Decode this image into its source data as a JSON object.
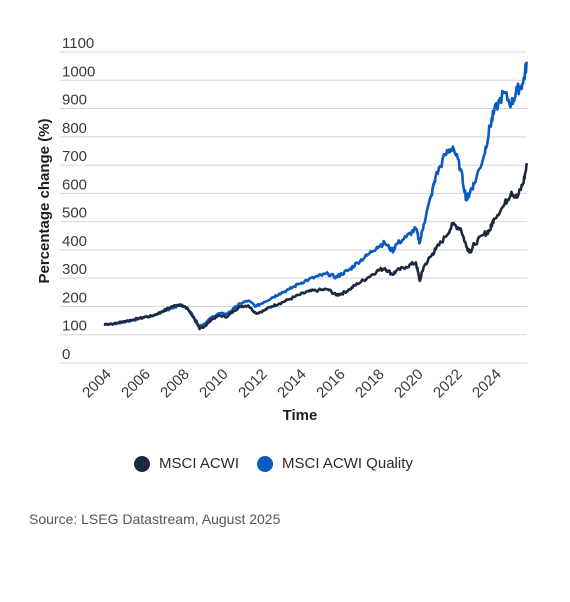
{
  "chart_data": {
    "type": "line",
    "title": "",
    "xlabel": "Time",
    "ylabel": "Percentage change (%)",
    "ylim": [
      0,
      1100
    ],
    "yticks": [
      0,
      100,
      200,
      300,
      400,
      500,
      600,
      700,
      800,
      900,
      1000,
      1100
    ],
    "xlim": [
      2004,
      2025.7
    ],
    "xticks": [
      "2004",
      "2006",
      "2008",
      "2010",
      "2012",
      "2014",
      "2016",
      "2018",
      "2020",
      "2022",
      "2024"
    ],
    "grid": "horizontal",
    "legend_position": "bottom",
    "series": [
      {
        "name": "MSCI ACWI",
        "color": "#1c2a3f",
        "x": [
          2004.0,
          2004.5,
          2005.0,
          2005.5,
          2006.0,
          2006.5,
          2007.0,
          2007.5,
          2007.9,
          2008.3,
          2008.6,
          2008.9,
          2009.2,
          2009.5,
          2009.9,
          2010.3,
          2010.7,
          2011.0,
          2011.4,
          2011.8,
          2012.2,
          2012.6,
          2013.0,
          2013.5,
          2014.0,
          2014.5,
          2015.0,
          2015.5,
          2015.9,
          2016.2,
          2016.6,
          2017.0,
          2017.5,
          2018.0,
          2018.4,
          2018.8,
          2019.0,
          2019.5,
          2020.0,
          2020.2,
          2020.4,
          2020.8,
          2021.0,
          2021.5,
          2021.9,
          2022.3,
          2022.6,
          2022.8,
          2023.0,
          2023.5,
          2023.8,
          2024.0,
          2024.5,
          2024.9,
          2025.2,
          2025.5,
          2025.7
        ],
        "values": [
          102,
          103,
          112,
          118,
          126,
          132,
          148,
          165,
          172,
          155,
          125,
          85,
          96,
          118,
          132,
          128,
          150,
          165,
          168,
          140,
          150,
          165,
          175,
          190,
          205,
          218,
          222,
          225,
          205,
          210,
          225,
          245,
          265,
          290,
          300,
          278,
          290,
          305,
          320,
          255,
          305,
          345,
          365,
          410,
          455,
          440,
          375,
          360,
          385,
          420,
          435,
          475,
          520,
          570,
          550,
          600,
          665
        ]
      },
      {
        "name": "MSCI ACWI Quality",
        "color": "#0a5bbf",
        "x": [
          2004.0,
          2004.5,
          2005.0,
          2005.5,
          2006.0,
          2006.5,
          2007.0,
          2007.5,
          2007.9,
          2008.3,
          2008.6,
          2008.9,
          2009.2,
          2009.5,
          2009.9,
          2010.3,
          2010.7,
          2011.0,
          2011.4,
          2011.8,
          2012.2,
          2012.6,
          2013.0,
          2013.5,
          2014.0,
          2014.5,
          2015.0,
          2015.5,
          2015.9,
          2016.2,
          2016.6,
          2017.0,
          2017.5,
          2018.0,
          2018.4,
          2018.8,
          2019.0,
          2019.5,
          2020.0,
          2020.2,
          2020.4,
          2020.8,
          2021.0,
          2021.5,
          2021.9,
          2022.3,
          2022.6,
          2022.8,
          2023.0,
          2023.5,
          2023.8,
          2024.0,
          2024.5,
          2024.9,
          2025.2,
          2025.5,
          2025.7
        ],
        "values": [
          102,
          103,
          110,
          116,
          125,
          130,
          145,
          160,
          170,
          158,
          128,
          95,
          105,
          125,
          140,
          138,
          160,
          175,
          185,
          165,
          180,
          195,
          210,
          225,
          245,
          260,
          272,
          280,
          268,
          280,
          295,
          320,
          345,
          375,
          390,
          360,
          385,
          410,
          440,
          390,
          455,
          560,
          620,
          700,
          730,
          650,
          540,
          575,
          600,
          700,
          800,
          850,
          920,
          880,
          930,
          955,
          1030
        ]
      }
    ]
  },
  "legend": {
    "items": [
      {
        "label": "MSCI ACWI",
        "color": "#1c2a3f"
      },
      {
        "label": "MSCI ACWI Quality",
        "color": "#0a5bbf"
      }
    ]
  },
  "source": "Source: LSEG Datastream, August 2025"
}
